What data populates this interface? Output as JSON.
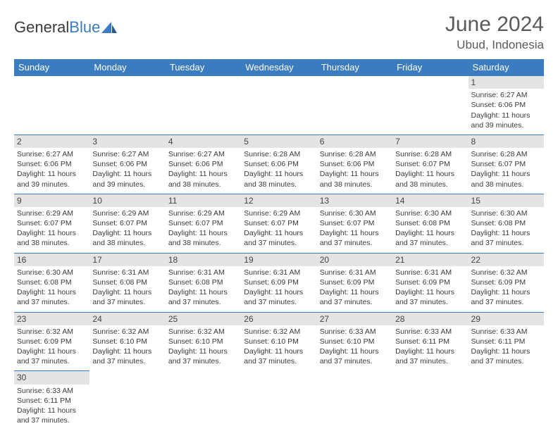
{
  "brand": {
    "part1": "General",
    "part2": "Blue"
  },
  "title": "June 2024",
  "location": "Ubud, Indonesia",
  "colors": {
    "header_bg": "#3b7bbf",
    "daynum_bg": "#e4e4e4",
    "text": "#3a3a3a"
  },
  "day_headers": [
    "Sunday",
    "Monday",
    "Tuesday",
    "Wednesday",
    "Thursday",
    "Friday",
    "Saturday"
  ],
  "weeks": [
    [
      null,
      null,
      null,
      null,
      null,
      null,
      {
        "n": "1",
        "sunrise": "Sunrise: 6:27 AM",
        "sunset": "Sunset: 6:06 PM",
        "d1": "Daylight: 11 hours",
        "d2": "and 39 minutes."
      }
    ],
    [
      {
        "n": "2",
        "sunrise": "Sunrise: 6:27 AM",
        "sunset": "Sunset: 6:06 PM",
        "d1": "Daylight: 11 hours",
        "d2": "and 39 minutes."
      },
      {
        "n": "3",
        "sunrise": "Sunrise: 6:27 AM",
        "sunset": "Sunset: 6:06 PM",
        "d1": "Daylight: 11 hours",
        "d2": "and 39 minutes."
      },
      {
        "n": "4",
        "sunrise": "Sunrise: 6:27 AM",
        "sunset": "Sunset: 6:06 PM",
        "d1": "Daylight: 11 hours",
        "d2": "and 38 minutes."
      },
      {
        "n": "5",
        "sunrise": "Sunrise: 6:28 AM",
        "sunset": "Sunset: 6:06 PM",
        "d1": "Daylight: 11 hours",
        "d2": "and 38 minutes."
      },
      {
        "n": "6",
        "sunrise": "Sunrise: 6:28 AM",
        "sunset": "Sunset: 6:06 PM",
        "d1": "Daylight: 11 hours",
        "d2": "and 38 minutes."
      },
      {
        "n": "7",
        "sunrise": "Sunrise: 6:28 AM",
        "sunset": "Sunset: 6:07 PM",
        "d1": "Daylight: 11 hours",
        "d2": "and 38 minutes."
      },
      {
        "n": "8",
        "sunrise": "Sunrise: 6:28 AM",
        "sunset": "Sunset: 6:07 PM",
        "d1": "Daylight: 11 hours",
        "d2": "and 38 minutes."
      }
    ],
    [
      {
        "n": "9",
        "sunrise": "Sunrise: 6:29 AM",
        "sunset": "Sunset: 6:07 PM",
        "d1": "Daylight: 11 hours",
        "d2": "and 38 minutes."
      },
      {
        "n": "10",
        "sunrise": "Sunrise: 6:29 AM",
        "sunset": "Sunset: 6:07 PM",
        "d1": "Daylight: 11 hours",
        "d2": "and 38 minutes."
      },
      {
        "n": "11",
        "sunrise": "Sunrise: 6:29 AM",
        "sunset": "Sunset: 6:07 PM",
        "d1": "Daylight: 11 hours",
        "d2": "and 38 minutes."
      },
      {
        "n": "12",
        "sunrise": "Sunrise: 6:29 AM",
        "sunset": "Sunset: 6:07 PM",
        "d1": "Daylight: 11 hours",
        "d2": "and 37 minutes."
      },
      {
        "n": "13",
        "sunrise": "Sunrise: 6:30 AM",
        "sunset": "Sunset: 6:07 PM",
        "d1": "Daylight: 11 hours",
        "d2": "and 37 minutes."
      },
      {
        "n": "14",
        "sunrise": "Sunrise: 6:30 AM",
        "sunset": "Sunset: 6:08 PM",
        "d1": "Daylight: 11 hours",
        "d2": "and 37 minutes."
      },
      {
        "n": "15",
        "sunrise": "Sunrise: 6:30 AM",
        "sunset": "Sunset: 6:08 PM",
        "d1": "Daylight: 11 hours",
        "d2": "and 37 minutes."
      }
    ],
    [
      {
        "n": "16",
        "sunrise": "Sunrise: 6:30 AM",
        "sunset": "Sunset: 6:08 PM",
        "d1": "Daylight: 11 hours",
        "d2": "and 37 minutes."
      },
      {
        "n": "17",
        "sunrise": "Sunrise: 6:31 AM",
        "sunset": "Sunset: 6:08 PM",
        "d1": "Daylight: 11 hours",
        "d2": "and 37 minutes."
      },
      {
        "n": "18",
        "sunrise": "Sunrise: 6:31 AM",
        "sunset": "Sunset: 6:08 PM",
        "d1": "Daylight: 11 hours",
        "d2": "and 37 minutes."
      },
      {
        "n": "19",
        "sunrise": "Sunrise: 6:31 AM",
        "sunset": "Sunset: 6:09 PM",
        "d1": "Daylight: 11 hours",
        "d2": "and 37 minutes."
      },
      {
        "n": "20",
        "sunrise": "Sunrise: 6:31 AM",
        "sunset": "Sunset: 6:09 PM",
        "d1": "Daylight: 11 hours",
        "d2": "and 37 minutes."
      },
      {
        "n": "21",
        "sunrise": "Sunrise: 6:31 AM",
        "sunset": "Sunset: 6:09 PM",
        "d1": "Daylight: 11 hours",
        "d2": "and 37 minutes."
      },
      {
        "n": "22",
        "sunrise": "Sunrise: 6:32 AM",
        "sunset": "Sunset: 6:09 PM",
        "d1": "Daylight: 11 hours",
        "d2": "and 37 minutes."
      }
    ],
    [
      {
        "n": "23",
        "sunrise": "Sunrise: 6:32 AM",
        "sunset": "Sunset: 6:09 PM",
        "d1": "Daylight: 11 hours",
        "d2": "and 37 minutes."
      },
      {
        "n": "24",
        "sunrise": "Sunrise: 6:32 AM",
        "sunset": "Sunset: 6:10 PM",
        "d1": "Daylight: 11 hours",
        "d2": "and 37 minutes."
      },
      {
        "n": "25",
        "sunrise": "Sunrise: 6:32 AM",
        "sunset": "Sunset: 6:10 PM",
        "d1": "Daylight: 11 hours",
        "d2": "and 37 minutes."
      },
      {
        "n": "26",
        "sunrise": "Sunrise: 6:32 AM",
        "sunset": "Sunset: 6:10 PM",
        "d1": "Daylight: 11 hours",
        "d2": "and 37 minutes."
      },
      {
        "n": "27",
        "sunrise": "Sunrise: 6:33 AM",
        "sunset": "Sunset: 6:10 PM",
        "d1": "Daylight: 11 hours",
        "d2": "and 37 minutes."
      },
      {
        "n": "28",
        "sunrise": "Sunrise: 6:33 AM",
        "sunset": "Sunset: 6:11 PM",
        "d1": "Daylight: 11 hours",
        "d2": "and 37 minutes."
      },
      {
        "n": "29",
        "sunrise": "Sunrise: 6:33 AM",
        "sunset": "Sunset: 6:11 PM",
        "d1": "Daylight: 11 hours",
        "d2": "and 37 minutes."
      }
    ],
    [
      {
        "n": "30",
        "sunrise": "Sunrise: 6:33 AM",
        "sunset": "Sunset: 6:11 PM",
        "d1": "Daylight: 11 hours",
        "d2": "and 37 minutes."
      },
      null,
      null,
      null,
      null,
      null,
      null
    ]
  ]
}
